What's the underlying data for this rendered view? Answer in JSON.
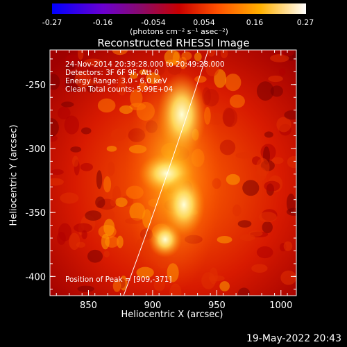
{
  "colorbar": {
    "ticks": [
      "-0.27",
      "-0.16",
      "-0.054",
      "0.054",
      "0.16",
      "0.27"
    ],
    "units": "(photons cm⁻² s⁻¹ asec⁻²)"
  },
  "title": "Reconstructed RHESSI Image",
  "info": {
    "time": "24-Nov-2014 20:39:28.000 to 20:49:28.000",
    "detectors": "Detectors: 3F 6F 9F, Att 0",
    "energy": "Energy Range: 3.0 - 6.0 keV",
    "clean": "Clean    Total counts: 5.99E+04",
    "peak": "Position of Peak = [909,-371]"
  },
  "stamp": "19-May-2022 20:43",
  "chart_data": {
    "type": "heatmap",
    "title": "Reconstructed RHESSI Image",
    "xlabel": "Heliocentric X (arcsec)",
    "ylabel": "Heliocentric Y (arcsec)",
    "xlim": [
      820,
      1012
    ],
    "ylim": [
      -415,
      -223
    ],
    "xticks": [
      850,
      900,
      950,
      1000
    ],
    "yticks": [
      -250,
      -300,
      -350,
      -400
    ],
    "colorbar_range": [
      -0.27,
      0.27
    ],
    "peak": [
      909,
      -371
    ],
    "colormap_colors": [
      "#0000ff",
      "#8a0a6a",
      "#c80000",
      "#ff5000",
      "#ffb000",
      "#ffffff"
    ]
  }
}
